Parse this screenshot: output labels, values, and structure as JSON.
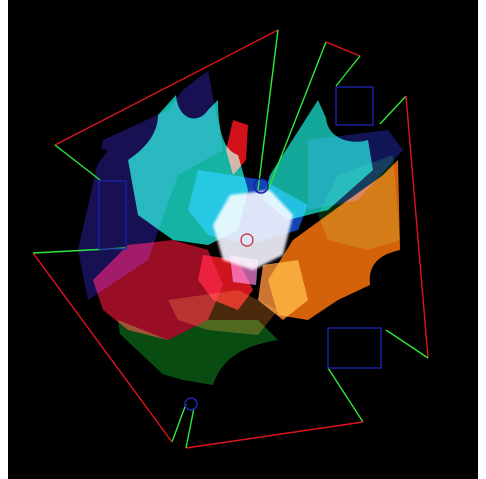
{
  "scene": {
    "background": "#000000",
    "wall_colors": {
      "red": "#e0141c",
      "green": "#2ee83a"
    },
    "light_colors": [
      "#d0102a",
      "#12c8b8",
      "#1a3ad8",
      "#e8700c",
      "#0c5a14",
      "#2a1a6a"
    ],
    "box_outline_color": "#1a22a8",
    "pivot_color": "#c81e32"
  }
}
